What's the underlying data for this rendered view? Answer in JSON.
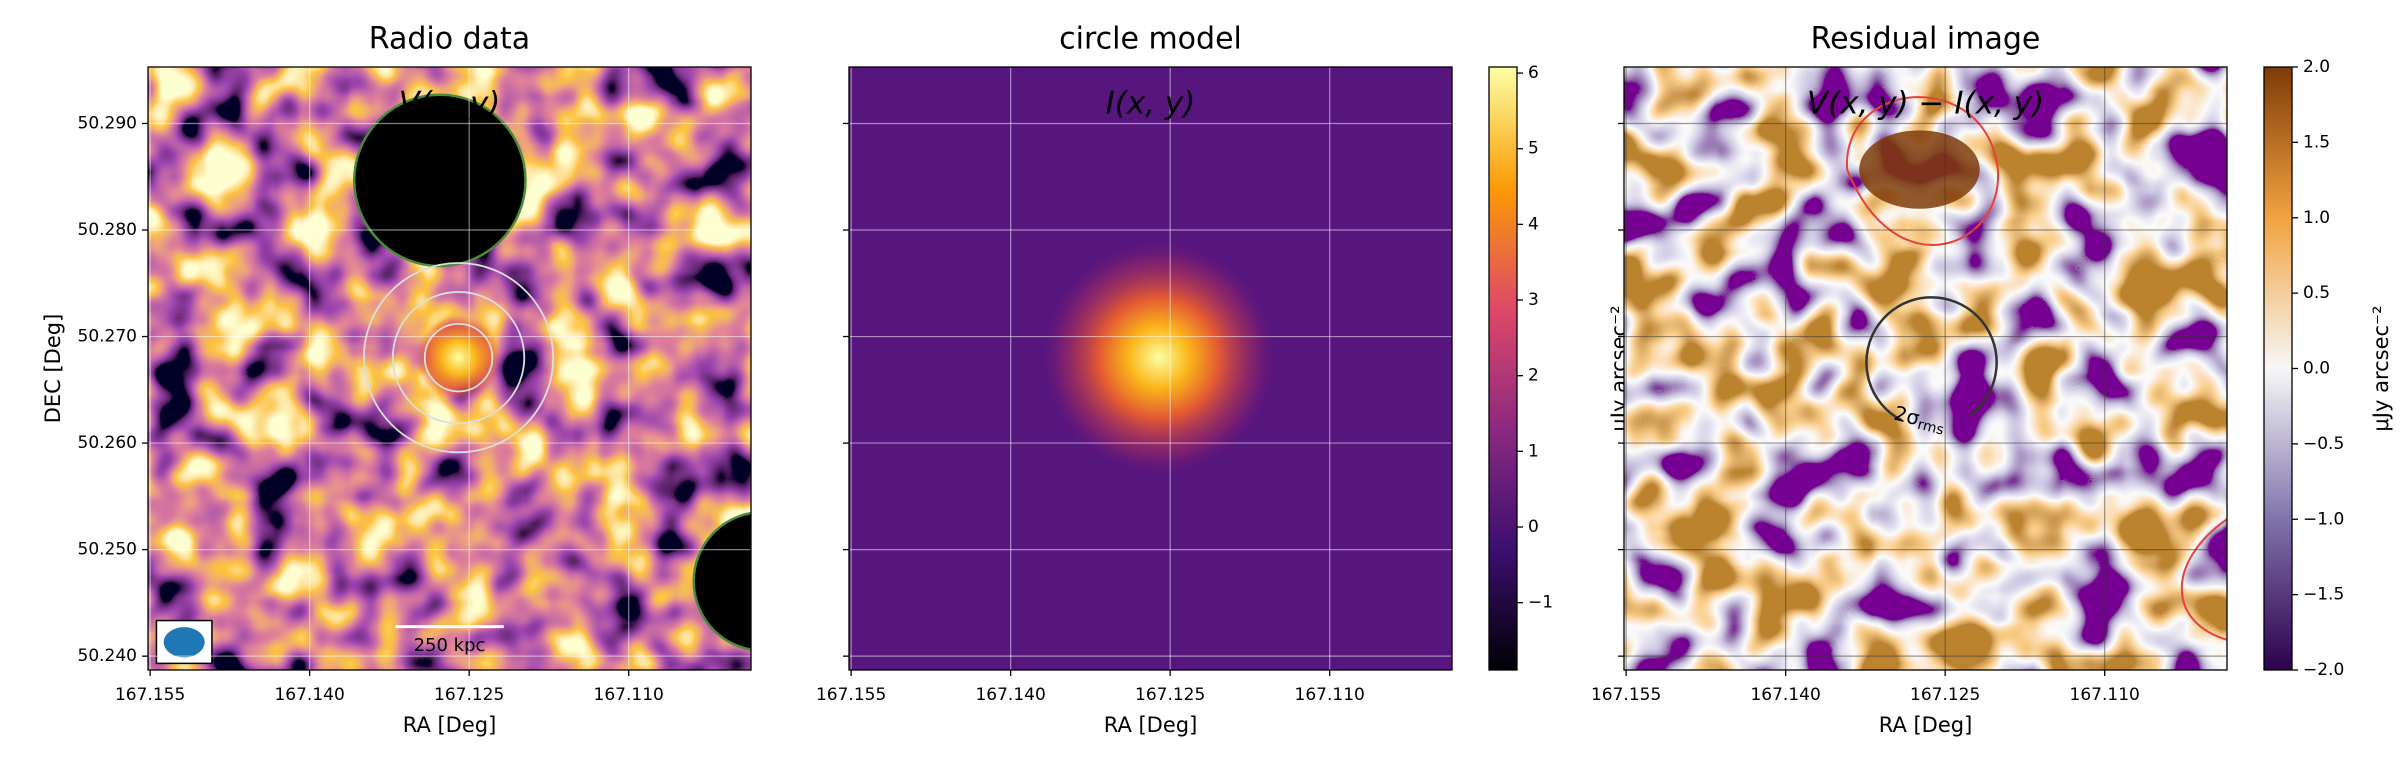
{
  "chart_data": [
    {
      "type": "image",
      "title": "Radio data",
      "annotation": "V(x, y)",
      "annotation_color": "#ffffff",
      "xlabel": "RA [Deg]",
      "ylabel": "DEC [Deg]",
      "colormap": "inferno",
      "grid": true,
      "grid_color": "#ffffff",
      "xlim": [
        167.1552,
        167.0985
      ],
      "ylim": [
        50.2387,
        50.2953
      ],
      "xticks": [
        167.155,
        {
          "value": 167.14,
          "label": "167.140"
        },
        167.125,
        {
          "value": 167.11,
          "label": "167.110"
        }
      ],
      "yticks": [
        {
          "value": 50.24,
          "label": "50.240"
        },
        {
          "value": 50.25,
          "label": "50.250"
        },
        {
          "value": 50.26,
          "label": "50.260"
        },
        {
          "value": 50.27,
          "label": "50.270"
        },
        {
          "value": 50.28,
          "label": "50.280"
        },
        {
          "value": 50.29,
          "label": "50.290"
        }
      ],
      "ytick_labels": true,
      "scale_bar": "250 kpc"
    },
    {
      "type": "image",
      "title": "circle model",
      "annotation": "I(x, y)",
      "annotation_color": "#ffffff",
      "xlabel": "RA [Deg]",
      "colormap": "inferno",
      "grid": true,
      "grid_color": "#ffffff",
      "xlim": [
        167.1552,
        167.0985
      ],
      "ylim": [
        50.2387,
        50.2953
      ],
      "xticks": [
        167.155,
        {
          "value": 167.14,
          "label": "167.140"
        },
        167.125,
        {
          "value": 167.11,
          "label": "167.110"
        }
      ],
      "yticks": [
        50.24,
        50.25,
        50.26,
        50.27,
        50.28,
        50.29
      ],
      "ytick_labels": false,
      "colorbar": {
        "label": "μJy arcsec⁻²",
        "lim": [
          -1.89,
          6.08
        ],
        "ticks": [
          {
            "value": -1,
            "label": "−1"
          },
          0,
          1,
          2,
          3,
          4,
          5,
          6
        ]
      }
    },
    {
      "type": "image",
      "title": "Residual image",
      "annotation": "V(x, y) − I(x, y)",
      "annotation_color": "#000000",
      "xlabel": "RA [Deg]",
      "colormap": "PuOr",
      "grid": true,
      "grid_color": "#333333",
      "xlim": [
        167.1552,
        167.0985
      ],
      "ylim": [
        50.2387,
        50.2953
      ],
      "xticks": [
        167.155,
        {
          "value": 167.14,
          "label": "167.140"
        },
        167.125,
        {
          "value": 167.11,
          "label": "167.110"
        }
      ],
      "yticks": [
        50.24,
        50.25,
        50.26,
        50.27,
        50.28,
        50.29
      ],
      "ytick_labels": false,
      "contour_label": {
        "main": "2σ",
        "sub": "rms"
      },
      "colorbar": {
        "label": "μJy arcsec⁻²",
        "lim": [
          -2,
          2
        ],
        "ticks": [
          {
            "value": -2,
            "label": "−2.0"
          },
          {
            "value": -1.5,
            "label": "−1.5"
          },
          {
            "value": -1,
            "label": "−1.0"
          },
          {
            "value": -0.5,
            "label": "−0.5"
          },
          {
            "value": 0,
            "label": "0.0"
          },
          {
            "value": 0.5,
            "label": "0.5"
          },
          {
            "value": 1,
            "label": "1.0"
          },
          {
            "value": 1.5,
            "label": "1.5"
          },
          {
            "value": 2,
            "label": "2.0"
          }
        ]
      }
    }
  ]
}
